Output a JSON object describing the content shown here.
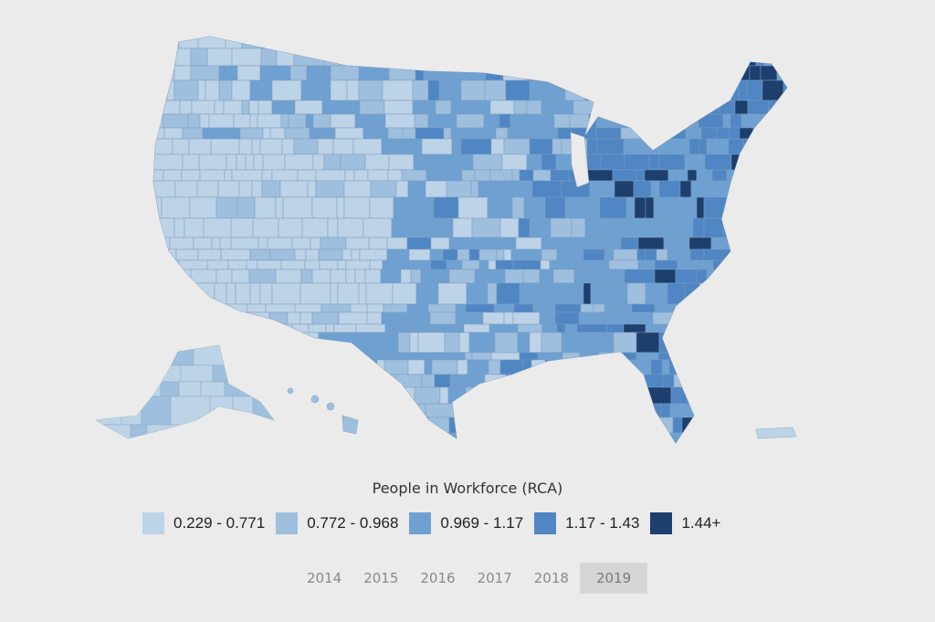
{
  "legend": {
    "title": "People in Workforce (RCA)",
    "bins": [
      {
        "label": "0.229 - 0.771",
        "color": "#bdd3e7"
      },
      {
        "label": "0.772 - 0.968",
        "color": "#9ebfde"
      },
      {
        "label": "0.969 - 1.17",
        "color": "#6fa0d2"
      },
      {
        "label": "1.17 - 1.43",
        "color": "#4f86c3"
      },
      {
        "label": "1.44+",
        "color": "#1c3f6e"
      }
    ]
  },
  "years": {
    "options": [
      "2014",
      "2015",
      "2016",
      "2017",
      "2018",
      "2019"
    ],
    "selected": "2019"
  }
}
